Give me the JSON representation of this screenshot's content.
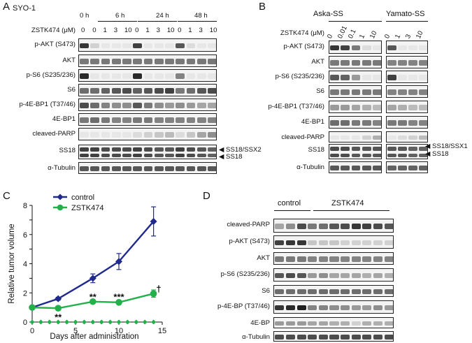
{
  "panels": {
    "A": {
      "letter": "A",
      "cell_line": "SYO-1",
      "drug_label": "ZSTK474 (μM)",
      "timepoints": [
        "0 h",
        "6 h",
        "24 h",
        "48 h"
      ],
      "doses": [
        "0",
        "0",
        "1",
        "3",
        "10",
        "0",
        "1",
        "3",
        "10",
        "0",
        "1",
        "3",
        "10"
      ],
      "rows": [
        "p-AKT (S473)",
        "AKT",
        "p-S6 (S235/236)",
        "S6",
        "p-4E-BP1 (T37/46)",
        "4E-BP1",
        "cleaved-PARP",
        "SS18",
        "α-Tubulin"
      ],
      "arrows": [
        "SS18/SSX2",
        "SS18"
      ]
    },
    "B": {
      "letter": "B",
      "groups": [
        "Aska-SS",
        "Yamato-SS"
      ],
      "drug_label": "ZSTK474 (μM)",
      "doses_aska": [
        "0",
        "0.01",
        "0.1",
        "1",
        "10"
      ],
      "doses_yamato": [
        "0",
        "1",
        "3",
        "10"
      ],
      "rows": [
        "p-AKT (S473)",
        "AKT",
        "p-S6 (S235/236)",
        "S6",
        "p-4E-BP1 (T37/46)",
        "4E-BP1",
        "cleaved-PARP",
        "SS18",
        "α-Tubulin"
      ],
      "arrows": [
        "SS18/SSX1",
        "SS18"
      ]
    },
    "C": {
      "letter": "C"
    },
    "D": {
      "letter": "D",
      "groups": [
        "control",
        "ZSTK474"
      ],
      "rows": [
        "cleaved-PARP",
        "p-AKT (S473)",
        "AKT",
        "p-S6 (S235/236)",
        "S6",
        "p-4E-BP (T37/46)",
        "4E-BP",
        "α-Tubulin"
      ]
    }
  },
  "chart_data": {
    "type": "line",
    "xlabel": "Days after administration",
    "ylabel": "Relative tumor volume",
    "xlim": [
      0,
      15
    ],
    "ylim": [
      0,
      8
    ],
    "xticks": [
      0,
      5,
      10,
      15
    ],
    "yticks": [
      0,
      1,
      2,
      3,
      4,
      5,
      6,
      7,
      8
    ],
    "legend_position": "top-left",
    "series": [
      {
        "name": "control",
        "color": "#1f2a8c",
        "marker": "diamond",
        "x": [
          0,
          3,
          7,
          10,
          14
        ],
        "y": [
          1.0,
          1.6,
          3.0,
          4.15,
          6.9
        ],
        "err": [
          0,
          0.1,
          0.3,
          0.55,
          1.0
        ]
      },
      {
        "name": "ZSTK474",
        "color": "#22b04b",
        "marker": "circle",
        "x": [
          0,
          3,
          7,
          10,
          14
        ],
        "y": [
          1.0,
          0.95,
          1.4,
          1.35,
          1.95
        ],
        "err": [
          0,
          0.05,
          0.1,
          0.1,
          0.25
        ]
      }
    ],
    "baseline_markers": {
      "color": "#22b04b",
      "x": [
        0,
        1,
        2,
        3,
        4,
        5,
        6,
        7,
        8,
        9,
        10,
        11,
        12,
        13,
        14
      ],
      "y": 0
    },
    "annotations": [
      {
        "text": "**",
        "x": 3,
        "y": 0.35
      },
      {
        "text": "**",
        "x": 7,
        "y": 1.75
      },
      {
        "text": "***",
        "x": 10,
        "y": 1.75
      },
      {
        "text": "†",
        "x": 14.6,
        "y": 2.3
      }
    ]
  },
  "colors": {
    "blot_bg": "#f3f3f3",
    "band": "#1a1a1a",
    "control": "#1f2a8c",
    "zstk": "#22b04b"
  }
}
